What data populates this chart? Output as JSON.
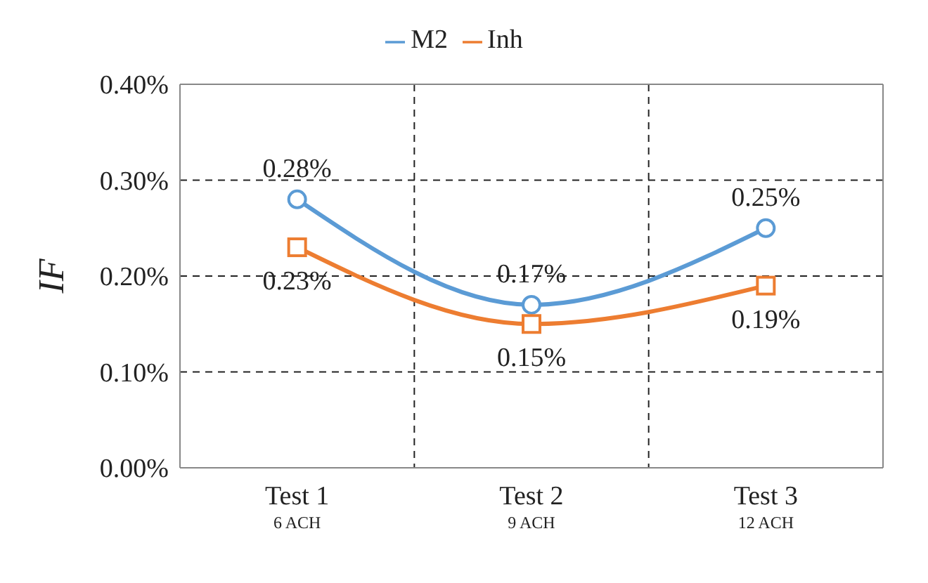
{
  "chart_data": {
    "type": "line",
    "ylabel": "IF",
    "categories": [
      "Test 1\n6 ACH",
      "Test 2\n9 ACH",
      "Test 3\n12 ACH"
    ],
    "series": [
      {
        "name": "M2",
        "color": "#5b9bd5",
        "values": [
          0.28,
          0.17,
          0.25
        ],
        "marker": "circle",
        "value_labels": [
          "0.28%",
          "0.17%",
          "0.25%"
        ]
      },
      {
        "name": "Inh",
        "color": "#ed7d31",
        "values": [
          0.23,
          0.15,
          0.19
        ],
        "marker": "square",
        "value_labels": [
          "0.23%",
          "0.15%",
          "0.19%"
        ]
      }
    ],
    "ylim": [
      0,
      0.4
    ],
    "yticks": [
      {
        "value": 0,
        "label": "0.00%"
      },
      {
        "value": 0.1,
        "label": "0.10%"
      },
      {
        "value": 0.2,
        "label": "0.20%"
      },
      {
        "value": 0.3,
        "label": "0.30%"
      },
      {
        "value": 0.4,
        "label": "0.40%"
      }
    ],
    "grid": true,
    "legend": "top",
    "line_style": "solid"
  }
}
